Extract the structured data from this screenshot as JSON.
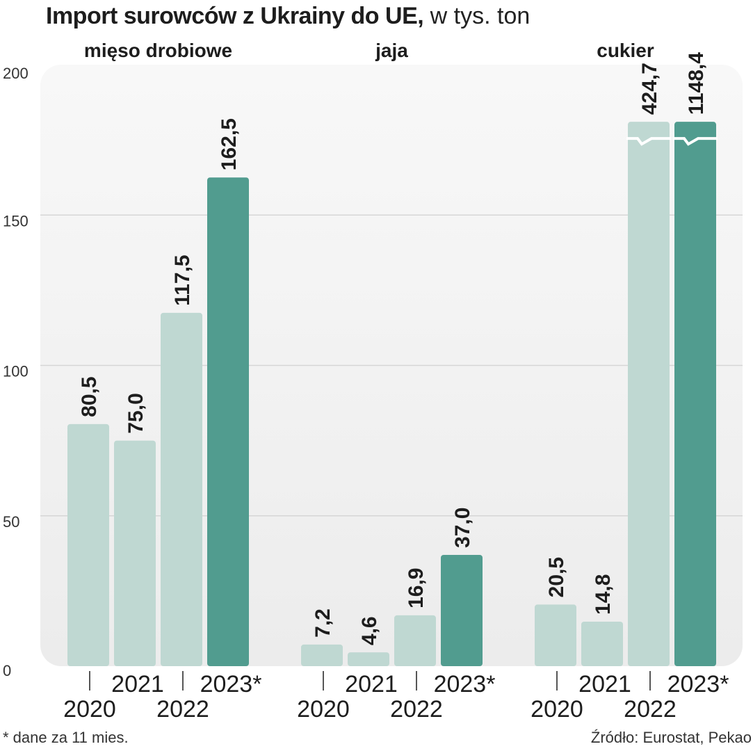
{
  "title": {
    "main": "Import surowców z Ukrainy do UE,",
    "unit": "w tys. ton"
  },
  "colors": {
    "light_bar": "#bfd8d2",
    "dark_bar": "#519c8f",
    "plot_bg_top": "#f8f8f8",
    "plot_bg_bottom": "#ececec",
    "grid": "#d6d6d6"
  },
  "chart_data": {
    "type": "bar",
    "title": "Import surowców z Ukrainy do UE, w tys. ton",
    "ylabel": "",
    "xlabel": "",
    "ylim": [
      0,
      200
    ],
    "yticks": [
      0,
      50,
      100,
      150,
      200
    ],
    "grid": true,
    "categories": [
      "2020",
      "2021",
      "2022",
      "2023*"
    ],
    "series": [
      {
        "name": "mięso drobiowe",
        "values": [
          80.5,
          75.0,
          117.5,
          162.5
        ],
        "labels": [
          "80,5",
          "75,0",
          "117,5",
          "162,5"
        ]
      },
      {
        "name": "jaja",
        "values": [
          7.2,
          4.6,
          16.9,
          37.0
        ],
        "labels": [
          "7,2",
          "4,6",
          "16,9",
          "37,0"
        ]
      },
      {
        "name": "cukier",
        "values": [
          20.5,
          14.8,
          424.7,
          1148.4
        ],
        "labels": [
          "20,5",
          "14,8",
          "424,7",
          "1148,4"
        ],
        "axis_break": true
      }
    ]
  },
  "footnote": "* dane za 11 mies.",
  "source": "Źródło: Eurostat, Pekao"
}
